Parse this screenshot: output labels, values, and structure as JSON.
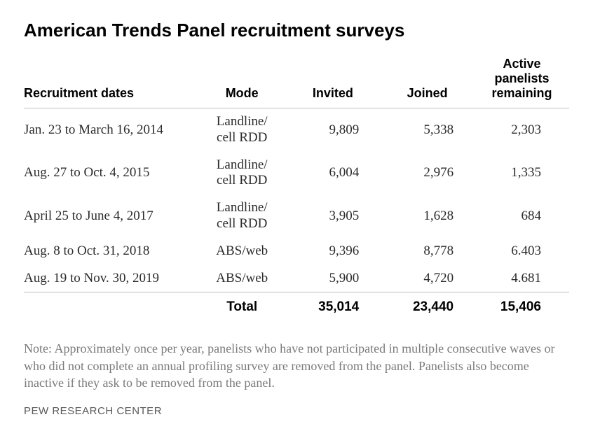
{
  "title": "American Trends Panel recruitment surveys",
  "columns": {
    "dates": "Recruitment dates",
    "mode": "Mode",
    "invited": "Invited",
    "joined": "Joined",
    "remaining_l1": "Active",
    "remaining_l2": "panelists",
    "remaining_l3": "remaining"
  },
  "rows": [
    {
      "dates": "Jan. 23 to March 16, 2014",
      "mode_l1": "Landline/",
      "mode_l2": "cell RDD",
      "invited": "9,809",
      "joined": "5,338",
      "remaining": "2,303"
    },
    {
      "dates": "Aug. 27 to Oct. 4, 2015",
      "mode_l1": "Landline/",
      "mode_l2": "cell RDD",
      "invited": "6,004",
      "joined": "2,976",
      "remaining": "1,335"
    },
    {
      "dates": "April 25 to June 4, 2017",
      "mode_l1": "Landline/",
      "mode_l2": "cell RDD",
      "invited": "3,905",
      "joined": "1,628",
      "remaining": "684"
    },
    {
      "dates": "Aug. 8 to Oct. 31, 2018",
      "mode_l1": "ABS/web",
      "mode_l2": "",
      "invited": "9,396",
      "joined": "8,778",
      "remaining": "6.403"
    },
    {
      "dates": "Aug. 19 to Nov. 30, 2019",
      "mode_l1": "ABS/web",
      "mode_l2": "",
      "invited": "5,900",
      "joined": "4,720",
      "remaining": "4.681"
    }
  ],
  "total": {
    "label": "Total",
    "invited": "35,014",
    "joined": "23,440",
    "remaining": "15,406"
  },
  "note": "Note: Approximately once per year, panelists who have not participated in multiple consecutive waves or who did not complete an annual profiling survey are removed from the panel. Panelists also become inactive if they ask to be removed from the panel.",
  "source": "PEW RESEARCH CENTER",
  "style": {
    "title_fontsize": 26,
    "body_fontsize": 19,
    "note_fontsize": 18,
    "source_fontsize": 15,
    "text_color": "#000000",
    "body_text_color": "#2b2b2b",
    "note_color": "#7a7a7a",
    "source_color": "#5a5a5a",
    "rule_color": "#bdbdbd",
    "background_color": "#ffffff",
    "font_heading": "Arial",
    "font_body": "Georgia"
  }
}
